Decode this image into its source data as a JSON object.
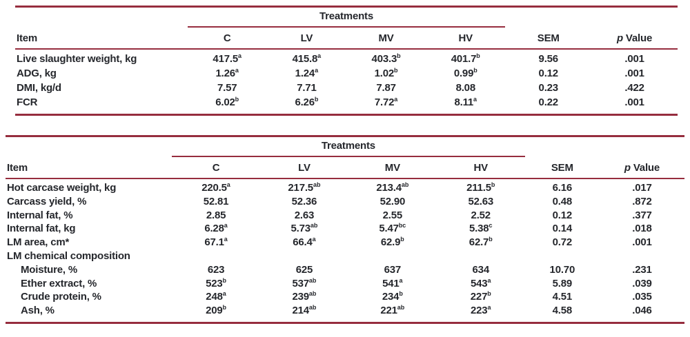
{
  "accent_color": "#962d3e",
  "text_color": "#25272c",
  "tables": [
    {
      "name": "growth-performance-table",
      "spanner": "Treatments",
      "columns": [
        "Item",
        "C",
        "LV",
        "MV",
        "HV",
        "SEM",
        "~p~ Value"
      ],
      "rows": [
        {
          "item": "Live slaughter weight, kg",
          "indent": 0,
          "cells": [
            "417.5^a",
            "415.8^a",
            "403.3^b",
            "401.7^b",
            "9.56",
            ".001"
          ]
        },
        {
          "item": "ADG, kg",
          "indent": 0,
          "cells": [
            "1.26^a",
            "1.24^a",
            "1.02^b",
            "0.99^b",
            "0.12",
            ".001"
          ]
        },
        {
          "item": "DMI, kg/d",
          "indent": 0,
          "cells": [
            "7.57",
            "7.71",
            "7.87",
            "8.08",
            "0.23",
            ".422"
          ]
        },
        {
          "item": "FCR",
          "indent": 0,
          "cells": [
            "6.02^b",
            "6.26^b",
            "7.72^a",
            "8.11^a",
            "0.22",
            ".001"
          ]
        }
      ]
    },
    {
      "name": "carcass-traits-table",
      "spanner": "Treatments",
      "columns": [
        "Item",
        "C",
        "LV",
        "MV",
        "HV",
        "SEM",
        "~p~ Value"
      ],
      "rows": [
        {
          "item": "Hot carcase weight, kg",
          "indent": 0,
          "cells": [
            "220.5^a",
            "217.5^ab",
            "213.4^ab",
            "211.5^b",
            "6.16",
            ".017"
          ]
        },
        {
          "item": "Carcass yield, %",
          "indent": 0,
          "cells": [
            "52.81",
            "52.36",
            "52.90",
            "52.63",
            "0.48",
            ".872"
          ]
        },
        {
          "item": "Internal fat, %",
          "indent": 0,
          "cells": [
            "2.85",
            "2.63",
            "2.55",
            "2.52",
            "0.12",
            ".377"
          ]
        },
        {
          "item": "Internal fat, kg",
          "indent": 0,
          "cells": [
            "6.28^a",
            "5.73^ab",
            "5.47^bc",
            "5.38^c",
            "0.14",
            ".018"
          ]
        },
        {
          "item": "LM area, cm*",
          "indent": 0,
          "cells": [
            "67.1^a",
            "66.4^a",
            "62.9^b",
            "62.7^b",
            "0.72",
            ".001"
          ]
        },
        {
          "item": "LM chemical composition",
          "indent": 0,
          "cells": [
            "",
            "",
            "",
            "",
            "",
            ""
          ]
        },
        {
          "item": "Moisture, %",
          "indent": 1,
          "cells": [
            "623",
            "625",
            "637",
            "634",
            "10.70",
            ".231"
          ]
        },
        {
          "item": "Ether extract, %",
          "indent": 1,
          "cells": [
            "523^b",
            "537^ab",
            "541^a",
            "543^a",
            "5.89",
            ".039"
          ]
        },
        {
          "item": "Crude protein, %",
          "indent": 1,
          "cells": [
            "248^a",
            "239^ab",
            "234^b",
            "227^b",
            "4.51",
            ".035"
          ]
        },
        {
          "item": "Ash, %",
          "indent": 1,
          "cells": [
            "209^b",
            "214^ab",
            "221^ab",
            "223^a",
            "4.58",
            ".046"
          ]
        }
      ]
    }
  ]
}
